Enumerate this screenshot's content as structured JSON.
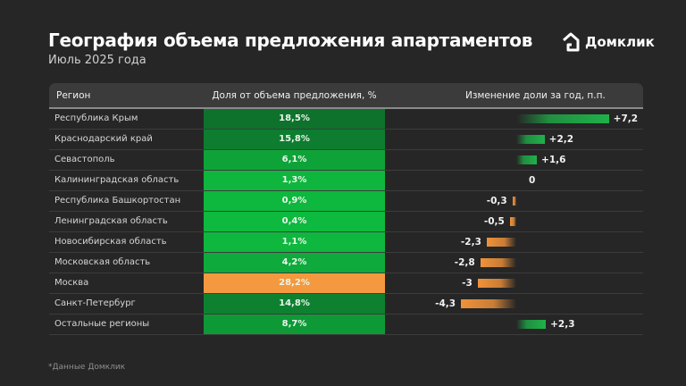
{
  "header": {
    "title": "География объема предложения апартаментов",
    "subtitle": "Июль 2025 года",
    "brand": "Домклик",
    "brand_icon": "house-logo-icon"
  },
  "table": {
    "columns": [
      "Регион",
      "Доля от объема предложения, %",
      "Изменение доли за год, п.п."
    ]
  },
  "chart_data": {
    "type": "table",
    "title": "География объема предложения апартаментов",
    "subtitle": "Июль 2025 года",
    "columns": [
      "Регион",
      "Доля от объема предложения, %",
      "Изменение доли за год, п.п."
    ],
    "rows": [
      {
        "region": "Республика Крым",
        "share": 18.5,
        "share_label": "18,5%",
        "change": 7.2,
        "change_label": "+7,2"
      },
      {
        "region": "Краснодарский край",
        "share": 15.8,
        "share_label": "15,8%",
        "change": 2.2,
        "change_label": "+2,2"
      },
      {
        "region": "Севастополь",
        "share": 6.1,
        "share_label": "6,1%",
        "change": 1.6,
        "change_label": "+1,6"
      },
      {
        "region": "Калининградская область",
        "share": 1.3,
        "share_label": "1,3%",
        "change": 0,
        "change_label": "0"
      },
      {
        "region": "Республика Башкортостан",
        "share": 0.9,
        "share_label": "0,9%",
        "change": -0.3,
        "change_label": "-0,3"
      },
      {
        "region": "Ленинградская область",
        "share": 0.4,
        "share_label": "0,4%",
        "change": -0.5,
        "change_label": "-0,5"
      },
      {
        "region": "Новосибирская область",
        "share": 1.1,
        "share_label": "1,1%",
        "change": -2.3,
        "change_label": "-2,3"
      },
      {
        "region": "Московская область",
        "share": 4.2,
        "share_label": "4,2%",
        "change": -2.8,
        "change_label": "-2,8"
      },
      {
        "region": "Москва",
        "share": 28.2,
        "share_label": "28,2%",
        "change": -3,
        "change_label": "-3"
      },
      {
        "region": "Санкт-Петербург",
        "share": 14.8,
        "share_label": "14,8%",
        "change": -4.3,
        "change_label": "-4,3"
      },
      {
        "region": "Остальные регионы",
        "share": 8.7,
        "share_label": "8,7%",
        "change": 2.3,
        "change_label": "+2,3"
      }
    ],
    "highlight": {
      "region": "Москва",
      "color": "#f4993f"
    },
    "colors": {
      "positive": "#1fb14a",
      "negative": "#f0923a",
      "share_low": "#0dbb3f",
      "share_high": "#0f6e2c"
    }
  },
  "footer": {
    "note": "*Данные Домклик"
  }
}
